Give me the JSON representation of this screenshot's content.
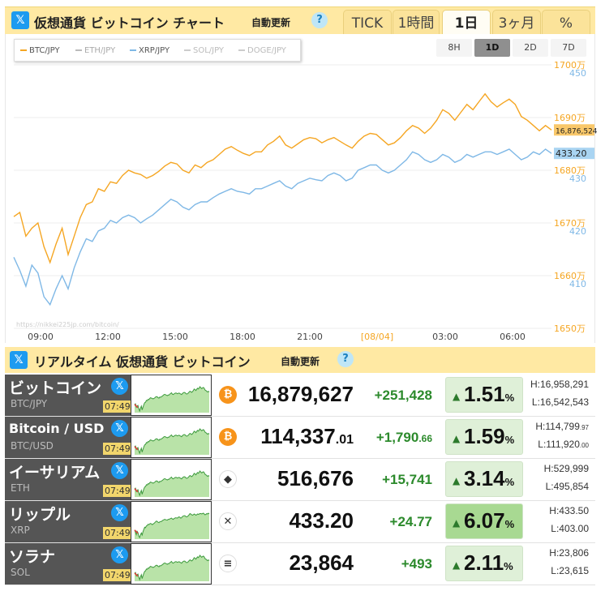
{
  "header": {
    "title": "仮想通貨 ビットコイン チャート",
    "auto_update": "自動更新",
    "help": "?",
    "x_icon": "x-twitter-icon",
    "tabs": [
      {
        "label": "TICK",
        "active": false
      },
      {
        "label": "1時間",
        "active": false
      },
      {
        "label": "1日",
        "active": true
      },
      {
        "label": "3ヶ月",
        "active": false
      },
      {
        "label": "%",
        "active": false
      }
    ]
  },
  "legend": [
    {
      "label": "BTC/JPY",
      "color": "#f5a623",
      "active": true
    },
    {
      "label": "ETH/JPY",
      "color": "#999999",
      "active": false
    },
    {
      "label": "XRP/JPY",
      "color": "#7fb8e6",
      "active": true
    },
    {
      "label": "SOL/JPY",
      "color": "#bbbbbb",
      "active": false
    },
    {
      "label": "DOGE/JPY",
      "color": "#bbbbbb",
      "active": false
    }
  ],
  "ranges": [
    {
      "label": "8H",
      "active": false
    },
    {
      "label": "1D",
      "active": true
    },
    {
      "label": "2D",
      "active": false
    },
    {
      "label": "7D",
      "active": false
    }
  ],
  "chart_data": {
    "type": "line",
    "x_ticks": [
      "09:00",
      "12:00",
      "15:00",
      "18:00",
      "21:00",
      "[08/04]",
      "03:00",
      "06:00"
    ],
    "left_axis_ticks": [
      "1700万",
      "1690万",
      "1680万",
      "1670万",
      "1660万",
      "1650万"
    ],
    "right_axis_ticks": [
      "450",
      "430",
      "420",
      "410"
    ],
    "btc_ylim": [
      16500000,
      17000000
    ],
    "xrp_ylim": [
      400,
      450
    ],
    "current_btc_label": "16,876,524",
    "current_xrp_label": "433.20",
    "watermark": "https://nikkei225jp.com/bitcoin/",
    "series": [
      {
        "name": "BTC/JPY",
        "color": "#f5a623",
        "points": [
          [
            0,
            16712000
          ],
          [
            1,
            16720000
          ],
          [
            2,
            16675000
          ],
          [
            3,
            16690000
          ],
          [
            4,
            16700000
          ],
          [
            5,
            16655000
          ],
          [
            6,
            16625000
          ],
          [
            7,
            16660000
          ],
          [
            8,
            16690000
          ],
          [
            9,
            16640000
          ],
          [
            10,
            16675000
          ],
          [
            11,
            16710000
          ],
          [
            12,
            16735000
          ],
          [
            13,
            16740000
          ],
          [
            14,
            16765000
          ],
          [
            15,
            16760000
          ],
          [
            16,
            16778000
          ],
          [
            17,
            16775000
          ],
          [
            18,
            16790000
          ],
          [
            19,
            16800000
          ],
          [
            20,
            16795000
          ],
          [
            21,
            16792000
          ],
          [
            22,
            16785000
          ],
          [
            23,
            16790000
          ],
          [
            24,
            16798000
          ],
          [
            25,
            16808000
          ],
          [
            26,
            16815000
          ],
          [
            27,
            16812000
          ],
          [
            28,
            16800000
          ],
          [
            29,
            16795000
          ],
          [
            30,
            16810000
          ],
          [
            31,
            16805000
          ],
          [
            32,
            16815000
          ],
          [
            33,
            16820000
          ],
          [
            34,
            16830000
          ],
          [
            35,
            16840000
          ],
          [
            36,
            16845000
          ],
          [
            37,
            16838000
          ],
          [
            38,
            16832000
          ],
          [
            39,
            16828000
          ],
          [
            40,
            16835000
          ],
          [
            41,
            16835000
          ],
          [
            42,
            16848000
          ],
          [
            43,
            16855000
          ],
          [
            44,
            16865000
          ],
          [
            45,
            16848000
          ],
          [
            46,
            16842000
          ],
          [
            47,
            16850000
          ],
          [
            48,
            16858000
          ],
          [
            49,
            16862000
          ],
          [
            50,
            16860000
          ],
          [
            51,
            16852000
          ],
          [
            52,
            16858000
          ],
          [
            53,
            16862000
          ],
          [
            54,
            16855000
          ],
          [
            55,
            16848000
          ],
          [
            56,
            16842000
          ],
          [
            57,
            16855000
          ],
          [
            58,
            16865000
          ],
          [
            59,
            16870000
          ],
          [
            60,
            16868000
          ],
          [
            61,
            16858000
          ],
          [
            62,
            16848000
          ],
          [
            63,
            16852000
          ],
          [
            64,
            16862000
          ],
          [
            65,
            16875000
          ],
          [
            66,
            16885000
          ],
          [
            67,
            16880000
          ],
          [
            68,
            16870000
          ],
          [
            69,
            16880000
          ],
          [
            70,
            16895000
          ],
          [
            71,
            16915000
          ],
          [
            72,
            16908000
          ],
          [
            73,
            16895000
          ],
          [
            74,
            16910000
          ],
          [
            75,
            16925000
          ],
          [
            76,
            16915000
          ],
          [
            77,
            16930000
          ],
          [
            78,
            16945000
          ],
          [
            79,
            16930000
          ],
          [
            80,
            16920000
          ],
          [
            81,
            16928000
          ],
          [
            82,
            16935000
          ],
          [
            83,
            16925000
          ],
          [
            84,
            16902000
          ],
          [
            85,
            16895000
          ],
          [
            86,
            16885000
          ],
          [
            87,
            16875000
          ],
          [
            88,
            16885000
          ],
          [
            89,
            16876524
          ]
        ]
      },
      {
        "name": "XRP/JPY",
        "color": "#7fb8e6",
        "points": [
          [
            0,
            413.5
          ],
          [
            1,
            411.0
          ],
          [
            2,
            408.0
          ],
          [
            3,
            412.0
          ],
          [
            4,
            410.5
          ],
          [
            5,
            406.0
          ],
          [
            6,
            404.5
          ],
          [
            7,
            407.5
          ],
          [
            8,
            410.0
          ],
          [
            9,
            407.5
          ],
          [
            10,
            411.5
          ],
          [
            11,
            414.5
          ],
          [
            12,
            417.0
          ],
          [
            13,
            416.5
          ],
          [
            14,
            418.5
          ],
          [
            15,
            419.0
          ],
          [
            16,
            420.5
          ],
          [
            17,
            420.0
          ],
          [
            18,
            421.0
          ],
          [
            19,
            421.5
          ],
          [
            20,
            421.0
          ],
          [
            21,
            420.0
          ],
          [
            22,
            420.8
          ],
          [
            23,
            421.5
          ],
          [
            24,
            422.5
          ],
          [
            25,
            423.5
          ],
          [
            26,
            424.5
          ],
          [
            27,
            424.0
          ],
          [
            28,
            423.0
          ],
          [
            29,
            422.5
          ],
          [
            30,
            423.5
          ],
          [
            31,
            424.0
          ],
          [
            32,
            424.0
          ],
          [
            33,
            424.8
          ],
          [
            34,
            425.5
          ],
          [
            35,
            426.0
          ],
          [
            36,
            426.5
          ],
          [
            37,
            426.0
          ],
          [
            38,
            425.8
          ],
          [
            39,
            425.5
          ],
          [
            40,
            426.5
          ],
          [
            41,
            426.5
          ],
          [
            42,
            427.0
          ],
          [
            43,
            427.5
          ],
          [
            44,
            428.0
          ],
          [
            45,
            427.0
          ],
          [
            46,
            426.5
          ],
          [
            47,
            427.5
          ],
          [
            48,
            428.0
          ],
          [
            49,
            428.5
          ],
          [
            50,
            428.2
          ],
          [
            51,
            428.0
          ],
          [
            52,
            429.0
          ],
          [
            53,
            429.5
          ],
          [
            54,
            429.0
          ],
          [
            55,
            428.0
          ],
          [
            56,
            428.5
          ],
          [
            57,
            430.0
          ],
          [
            58,
            430.5
          ],
          [
            59,
            431.0
          ],
          [
            60,
            431.0
          ],
          [
            61,
            430.0
          ],
          [
            62,
            429.5
          ],
          [
            63,
            430.0
          ],
          [
            64,
            431.0
          ],
          [
            65,
            432.0
          ],
          [
            66,
            433.5
          ],
          [
            67,
            433.0
          ],
          [
            68,
            432.0
          ],
          [
            69,
            431.5
          ],
          [
            70,
            432.0
          ],
          [
            71,
            433.0
          ],
          [
            72,
            432.5
          ],
          [
            73,
            431.5
          ],
          [
            74,
            432.0
          ],
          [
            75,
            433.0
          ],
          [
            76,
            432.5
          ],
          [
            77,
            433.0
          ],
          [
            78,
            433.5
          ],
          [
            79,
            433.5
          ],
          [
            80,
            433.0
          ],
          [
            81,
            433.5
          ],
          [
            82,
            434.0
          ],
          [
            83,
            433.0
          ],
          [
            84,
            432.0
          ],
          [
            85,
            432.5
          ],
          [
            86,
            433.5
          ],
          [
            87,
            433.0
          ],
          [
            88,
            434.0
          ],
          [
            89,
            433.2
          ]
        ]
      }
    ]
  },
  "realtime": {
    "title": "リアルタイム 仮想通貨 ビットコイン",
    "auto_update": "自動更新",
    "help": "?",
    "rows": [
      {
        "name": "ビットコイン",
        "pair": "BTC/JPY",
        "time": "07:49",
        "icon": "bitcoin-icon",
        "icon_glyph": "₿",
        "icon_bg": "#f7931a",
        "price": "16,879,627",
        "price_dec": "",
        "change": "+251,428",
        "change_dec": "",
        "pct": "1.51",
        "pct_unit": "%",
        "high": "H:16,958,291",
        "high_dec": "",
        "low": "L:16,542,543",
        "low_dec": "",
        "strong": false
      },
      {
        "name": "Bitcoin / USD",
        "pair": "BTC/USD",
        "time": "07:49",
        "icon": "bitcoin-icon",
        "icon_glyph": "₿",
        "icon_bg": "#f7931a",
        "price": "114,337",
        "price_dec": ".01",
        "change": "+1,790",
        "change_dec": ".66",
        "pct": "1.59",
        "pct_unit": "%",
        "high": "H:114,799",
        "high_dec": ".97",
        "low": "L:111,920",
        "low_dec": ".00",
        "strong": false
      },
      {
        "name": "イーサリアム",
        "pair": "ETH",
        "time": "07:49",
        "icon": "ethereum-icon",
        "icon_glyph": "◆",
        "icon_bg": "#ffffff",
        "price": "516,676",
        "price_dec": "",
        "change": "+15,741",
        "change_dec": "",
        "pct": "3.14",
        "pct_unit": "%",
        "high": "H:529,999",
        "high_dec": "",
        "low": "L:495,854",
        "low_dec": "",
        "strong": false
      },
      {
        "name": "リップル",
        "pair": "XRP",
        "time": "07:49",
        "icon": "xrp-icon",
        "icon_glyph": "✕",
        "icon_bg": "#ffffff",
        "price": "433.20",
        "price_dec": "",
        "change": "+24.77",
        "change_dec": "",
        "pct": "6.07",
        "pct_unit": "%",
        "high": "H:433.50",
        "high_dec": "",
        "low": "L:403.00",
        "low_dec": "",
        "strong": true
      },
      {
        "name": "ソラナ",
        "pair": "SOL",
        "time": "07:49",
        "icon": "solana-icon",
        "icon_glyph": "≡",
        "icon_bg": "#ffffff",
        "price": "23,864",
        "price_dec": "",
        "change": "+493",
        "change_dec": "",
        "pct": "2.11",
        "pct_unit": "%",
        "high": "H:23,806",
        "high_dec": "",
        "low": "L:23,615",
        "low_dec": "",
        "strong": false
      }
    ]
  }
}
